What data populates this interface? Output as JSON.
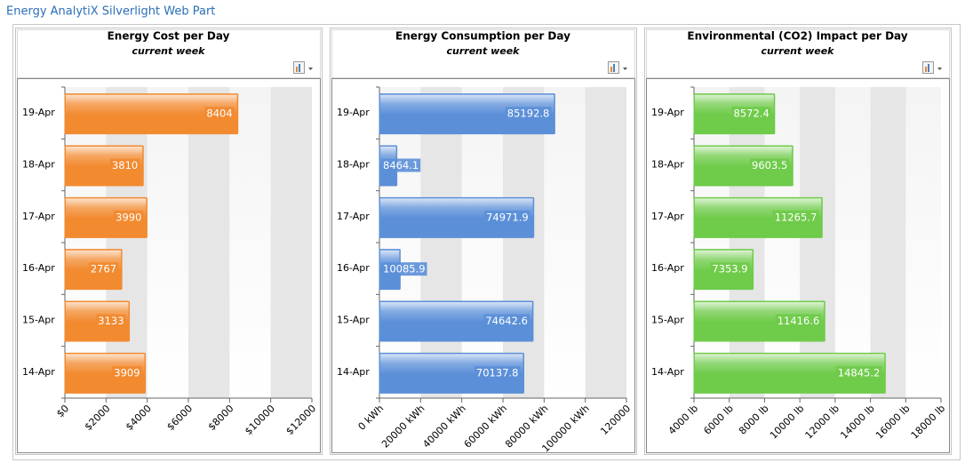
{
  "header": {
    "title": "Energy AnalytiX Silverlight Web Part"
  },
  "chart_data": [
    {
      "type": "hbar",
      "title": "Energy Cost per Day",
      "subtitle": "current week",
      "categories": [
        "19-Apr",
        "18-Apr",
        "17-Apr",
        "16-Apr",
        "15-Apr",
        "14-Apr"
      ],
      "values": [
        8404,
        3810,
        3990,
        2767,
        3133,
        3909
      ],
      "color": "#f28a30",
      "xlim": [
        0,
        12000
      ],
      "xticks": [
        {
          "value": 0,
          "label": "$0"
        },
        {
          "value": 2000,
          "label": "$2000"
        },
        {
          "value": 4000,
          "label": "$4000"
        },
        {
          "value": 6000,
          "label": "$6000"
        },
        {
          "value": 8000,
          "label": "$8000"
        },
        {
          "value": 10000,
          "label": "$10000"
        },
        {
          "value": 12000,
          "label": "$12000"
        }
      ],
      "grid": true
    },
    {
      "type": "hbar",
      "title": "Energy Consumption per Day",
      "subtitle": "current week",
      "categories": [
        "19-Apr",
        "18-Apr",
        "17-Apr",
        "16-Apr",
        "15-Apr",
        "14-Apr"
      ],
      "values": [
        85192.8,
        8464.1,
        74971.9,
        10085.9,
        74642.6,
        70137.8
      ],
      "color": "#5b8fd8",
      "xlim": [
        0,
        120000
      ],
      "xticks": [
        {
          "value": 0,
          "label": "0 kWh"
        },
        {
          "value": 20000,
          "label": "20000 kWh"
        },
        {
          "value": 40000,
          "label": "40000 kWh"
        },
        {
          "value": 60000,
          "label": "60000 kWh"
        },
        {
          "value": 80000,
          "label": "80000 kWh"
        },
        {
          "value": 100000,
          "label": "100000 kWh"
        },
        {
          "value": 120000,
          "label": "120000"
        }
      ],
      "grid": true
    },
    {
      "type": "hbar",
      "title": "Environmental (CO2) Impact per Day",
      "subtitle": "current week",
      "categories": [
        "19-Apr",
        "18-Apr",
        "17-Apr",
        "16-Apr",
        "15-Apr",
        "14-Apr"
      ],
      "values": [
        8572.4,
        9603.5,
        11265.7,
        7353.9,
        11416.6,
        14845.2
      ],
      "color": "#6fcb4a",
      "xlim": [
        4000,
        18000
      ],
      "xticks": [
        {
          "value": 4000,
          "label": "4000 lb"
        },
        {
          "value": 6000,
          "label": "6000 lb"
        },
        {
          "value": 8000,
          "label": "8000 lb"
        },
        {
          "value": 10000,
          "label": "10000 lb"
        },
        {
          "value": 12000,
          "label": "12000 lb"
        },
        {
          "value": 14000,
          "label": "14000 lb"
        },
        {
          "value": 16000,
          "label": "16000 lb"
        },
        {
          "value": 18000,
          "label": "18000 lb"
        }
      ],
      "grid": true
    }
  ]
}
